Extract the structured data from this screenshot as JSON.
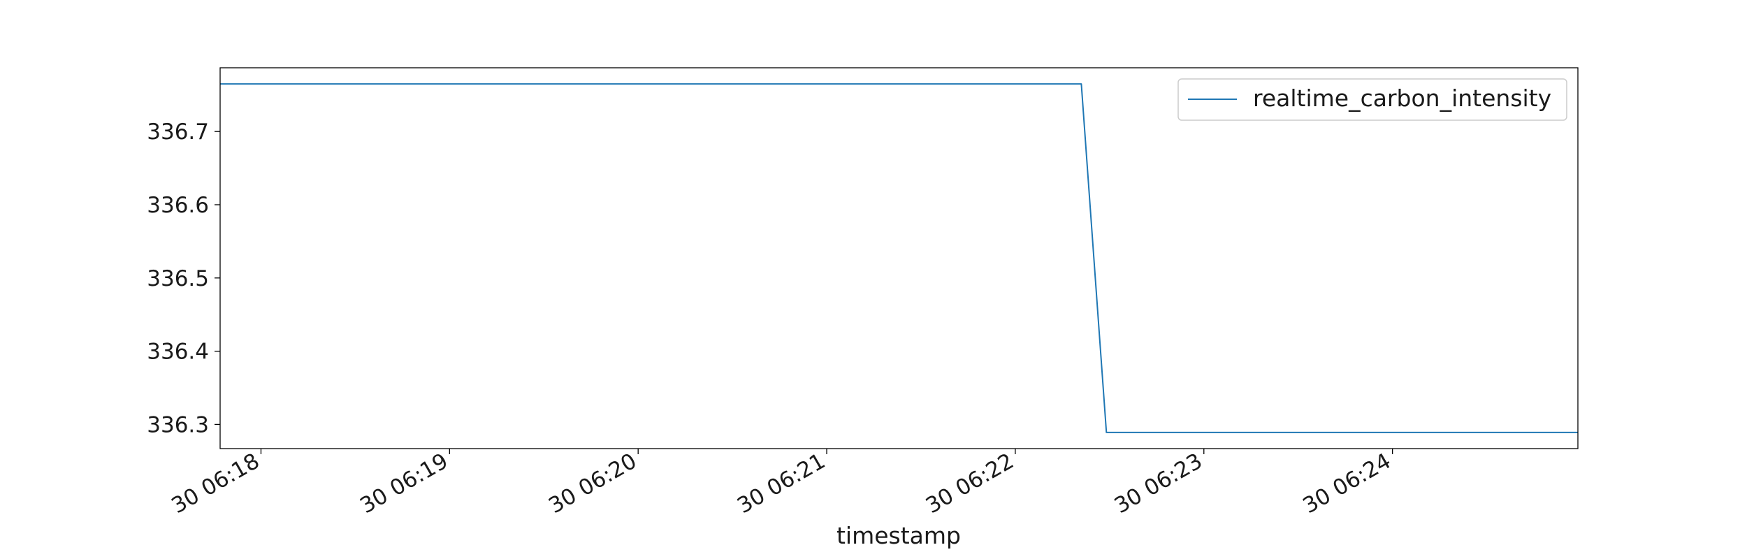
{
  "chart_data": {
    "type": "line",
    "title": "",
    "xlabel": "timestamp",
    "ylabel": "",
    "grid": false,
    "legend_position": "top-right",
    "x_tick_labels": [
      "30 06:18",
      "30 06:19",
      "30 06:20",
      "30 06:21",
      "30 06:22",
      "30 06:23",
      "30 06:24"
    ],
    "y_tick_labels": [
      "336.3",
      "336.4",
      "336.5",
      "336.6",
      "336.7"
    ],
    "x_ticks": [
      "06:18",
      "06:19",
      "06:20",
      "06:21",
      "06:22",
      "06:23",
      "06:24"
    ],
    "y_ticks": [
      336.3,
      336.4,
      336.5,
      336.6,
      336.7
    ],
    "xlim": [
      "06:17:47",
      "06:24:59"
    ],
    "ylim": [
      336.267,
      336.787
    ],
    "series": [
      {
        "name": "realtime_carbon_intensity",
        "color": "#1f77b4",
        "x": [
          "06:17:47",
          "06:22:21",
          "06:22:29",
          "06:24:59"
        ],
        "y": [
          336.765,
          336.765,
          336.289,
          336.289
        ]
      }
    ]
  }
}
